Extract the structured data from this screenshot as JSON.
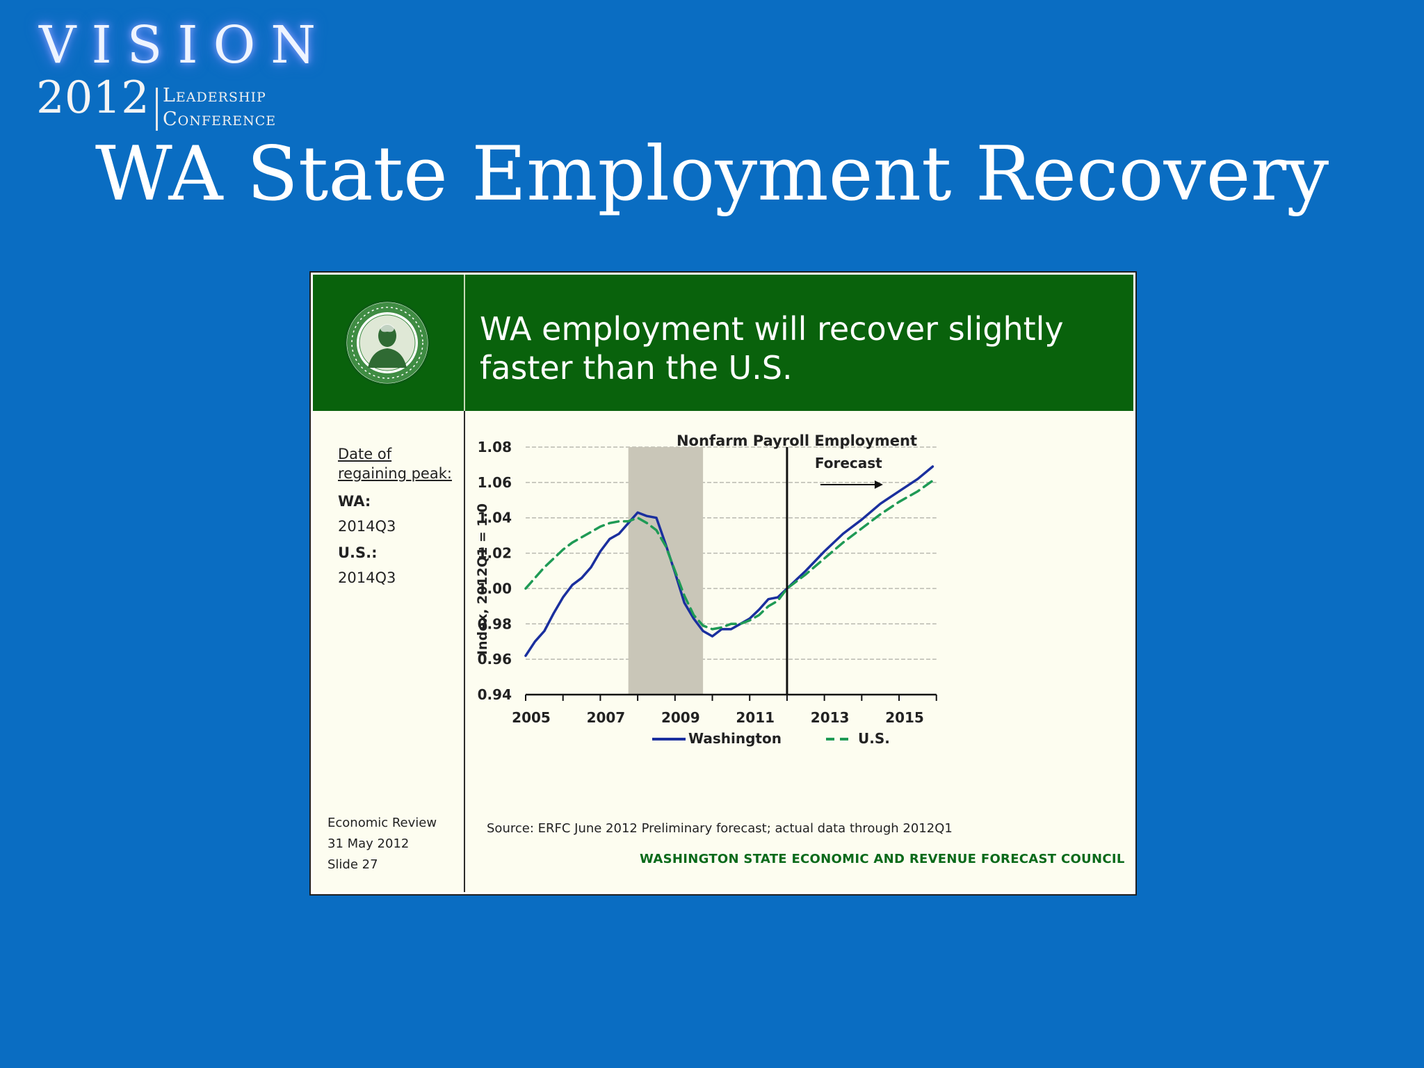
{
  "logo": {
    "word": "VISION",
    "year": "2012",
    "line1": "Leadership",
    "line2": "Conference"
  },
  "slide_title": "WA State Employment Recovery",
  "panel": {
    "headline": "WA employment will recover slightly faster than the U.S.",
    "seal_icon": "washington-state-seal",
    "sidebar": {
      "heading": "Date of regaining peak:",
      "wa_label": "WA:",
      "wa_value": "2014Q3",
      "us_label": "U.S.:",
      "us_value": "2014Q3"
    },
    "footer": {
      "line1": "Economic Review",
      "line2": "31 May 2012",
      "line3": "Slide 27"
    },
    "source": "Source: ERFC June 2012 Preliminary forecast; actual data through 2012Q1",
    "council": "WASHINGTON STATE ECONOMIC AND REVENUE FORECAST COUNCIL"
  },
  "chart_data": {
    "type": "line",
    "title": "Nonfarm Payroll Employment",
    "ylabel": "Index, 2012Q1 = 1.0",
    "xlabel": "",
    "xlim": [
      2005,
      2016
    ],
    "ylim": [
      0.94,
      1.08
    ],
    "yticks": [
      "0.94",
      "0.96",
      "0.98",
      "1.00",
      "1.02",
      "1.04",
      "1.06",
      "1.08"
    ],
    "xticks": [
      "2005",
      "2007",
      "2009",
      "2011",
      "2013",
      "2015"
    ],
    "grid": "horizontal dashed",
    "shaded_region": {
      "x_start": 2007.75,
      "x_end": 2009.75
    },
    "forecast_line": {
      "x": 2012.0,
      "label": "Forecast"
    },
    "legend_position": "bottom",
    "series": [
      {
        "name": "Washington",
        "color": "#1a2f9e",
        "style": "solid",
        "x": [
          2005.0,
          2005.25,
          2005.5,
          2005.75,
          2006.0,
          2006.25,
          2006.5,
          2006.75,
          2007.0,
          2007.25,
          2007.5,
          2007.75,
          2008.0,
          2008.25,
          2008.5,
          2008.75,
          2009.0,
          2009.25,
          2009.5,
          2009.75,
          2010.0,
          2010.25,
          2010.5,
          2010.75,
          2011.0,
          2011.25,
          2011.5,
          2011.75,
          2012.0,
          2012.5,
          2013.0,
          2013.5,
          2014.0,
          2014.5,
          2015.0,
          2015.5,
          2015.9
        ],
        "y": [
          0.962,
          0.97,
          0.976,
          0.986,
          0.995,
          1.002,
          1.006,
          1.012,
          1.021,
          1.028,
          1.031,
          1.037,
          1.043,
          1.041,
          1.04,
          1.025,
          1.009,
          0.992,
          0.983,
          0.976,
          0.973,
          0.977,
          0.977,
          0.98,
          0.983,
          0.988,
          0.994,
          0.995,
          1.0,
          1.01,
          1.021,
          1.031,
          1.039,
          1.048,
          1.055,
          1.062,
          1.069
        ]
      },
      {
        "name": "U.S.",
        "color": "#1f9a55",
        "style": "dashed",
        "x": [
          2005.0,
          2005.25,
          2005.5,
          2005.75,
          2006.0,
          2006.25,
          2006.5,
          2006.75,
          2007.0,
          2007.25,
          2007.5,
          2007.75,
          2008.0,
          2008.25,
          2008.5,
          2008.75,
          2009.0,
          2009.25,
          2009.5,
          2009.75,
          2010.0,
          2010.25,
          2010.5,
          2010.75,
          2011.0,
          2011.25,
          2011.5,
          2011.75,
          2012.0,
          2012.5,
          2013.0,
          2013.5,
          2014.0,
          2014.5,
          2015.0,
          2015.5,
          2015.9
        ],
        "y": [
          1.0,
          1.006,
          1.012,
          1.017,
          1.022,
          1.026,
          1.029,
          1.032,
          1.035,
          1.037,
          1.038,
          1.038,
          1.04,
          1.037,
          1.033,
          1.024,
          1.01,
          0.996,
          0.985,
          0.979,
          0.977,
          0.978,
          0.98,
          0.98,
          0.982,
          0.985,
          0.99,
          0.993,
          1.0,
          1.008,
          1.017,
          1.026,
          1.034,
          1.042,
          1.049,
          1.055,
          1.061
        ]
      }
    ]
  }
}
